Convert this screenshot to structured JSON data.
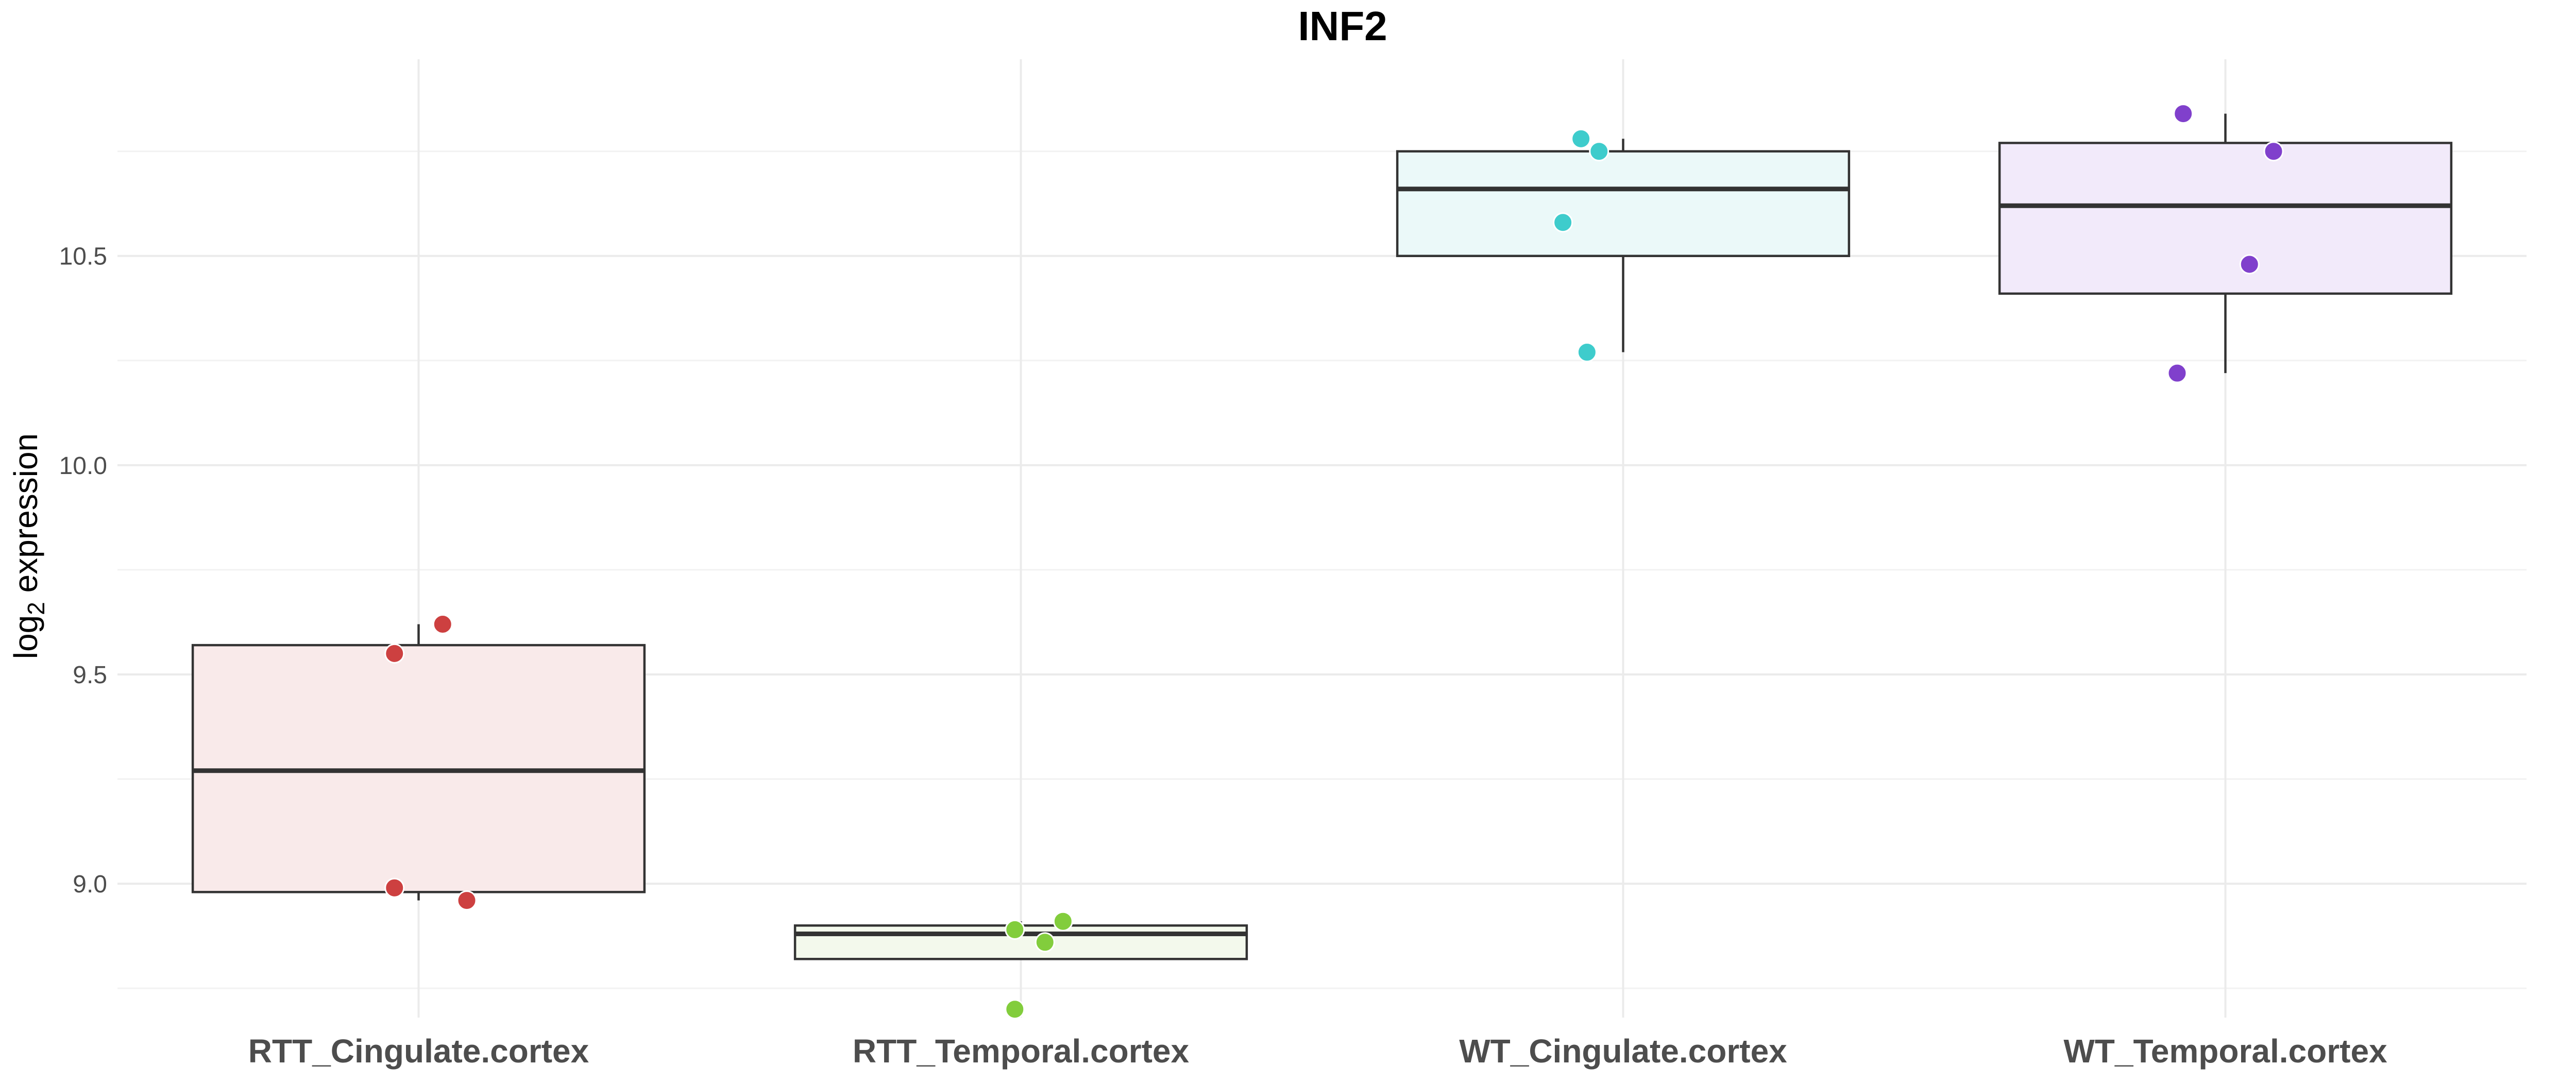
{
  "chart_data": {
    "type": "box",
    "title": "INF2",
    "xlabel": "",
    "ylabel_main": "log",
    "ylabel_sub": "2",
    "ylabel_rest": " expression",
    "ylim": [
      8.68,
      10.97
    ],
    "yticks": [
      9.0,
      9.5,
      10.0,
      10.5
    ],
    "ytick_labels": [
      "9.0",
      "9.5",
      "10.0",
      "10.5"
    ],
    "grid": true,
    "legend": "none",
    "categories": [
      "RTT_Cingulate.cortex",
      "RTT_Temporal.cortex",
      "WT_Cingulate.cortex",
      "WT_Temporal.cortex"
    ],
    "colors": [
      "#cd4040",
      "#82cd3c",
      "#3ecccc",
      "#8040cc"
    ],
    "fill_colors": [
      "#f9eaea",
      "#f3f9ec",
      "#ebf9f9",
      "#f2eafa"
    ],
    "boxes": [
      {
        "q1": 8.98,
        "median": 9.27,
        "q3": 9.57,
        "whisker_low": 8.96,
        "whisker_high": 9.62
      },
      {
        "q1": 8.82,
        "median": 8.88,
        "q3": 8.9,
        "whisker_low": 8.82,
        "whisker_high": 8.91
      },
      {
        "q1": 10.5,
        "median": 10.66,
        "q3": 10.75,
        "whisker_low": 10.27,
        "whisker_high": 10.78
      },
      {
        "q1": 10.41,
        "median": 10.62,
        "q3": 10.77,
        "whisker_low": 10.22,
        "whisker_high": 10.84
      }
    ],
    "points": [
      {
        "group": 0,
        "values": [
          9.62,
          9.55,
          8.99,
          8.96
        ],
        "jitter": [
          0.04,
          -0.04,
          -0.04,
          0.08
        ]
      },
      {
        "group": 1,
        "values": [
          8.91,
          8.89,
          8.86,
          8.7
        ],
        "jitter": [
          0.07,
          -0.01,
          0.04,
          -0.01
        ]
      },
      {
        "group": 2,
        "values": [
          10.78,
          10.75,
          10.58,
          10.27
        ],
        "jitter": [
          -0.07,
          -0.04,
          -0.1,
          -0.06
        ]
      },
      {
        "group": 3,
        "values": [
          10.84,
          10.75,
          10.48,
          10.22
        ],
        "jitter": [
          -0.07,
          0.08,
          0.04,
          -0.08
        ]
      }
    ]
  }
}
